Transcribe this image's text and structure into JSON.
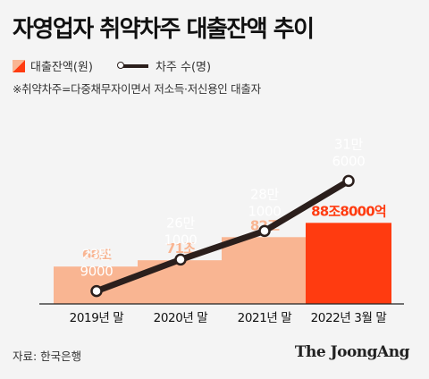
{
  "title": "자영업자 취약차주 대출잔액 추이",
  "legend": {
    "bar_label": "대출잔액(원)",
    "line_label": "차주 수(명)"
  },
  "note": "※취약차주=다중채무자이면서 저소득·저신용인 대출자",
  "source": "자료: 한국은행",
  "brand": "The JoongAng",
  "colors": {
    "bar": "#f9b592",
    "bar_highlight": "#ff3b10",
    "bar_label": "#f9b592",
    "bar_label_highlight": "#ff3b10",
    "line": "#2b1f1c"
  },
  "chart_data": {
    "type": "bar",
    "title": "자영업자 취약차주 대출잔액 추이",
    "categories": [
      "2019년 말",
      "2020년 말",
      "2021년 말",
      "2022년 3월 말"
    ],
    "series": [
      {
        "name": "대출잔액(원)",
        "type": "bar",
        "unit": "조",
        "values": [
          68,
          71,
          82,
          88.8
        ],
        "labels": [
          "68조",
          "71조",
          "82조",
          "88조8000억"
        ]
      },
      {
        "name": "차주 수(명)",
        "type": "line",
        "unit": "명",
        "values": [
          239000,
          261000,
          281000,
          316000
        ],
        "labels": [
          "23만\n9000",
          "26만\n1000",
          "28만\n1000",
          "31만\n6000"
        ]
      }
    ],
    "highlight_index": 3,
    "grid": false,
    "legend_position": "top-left"
  }
}
